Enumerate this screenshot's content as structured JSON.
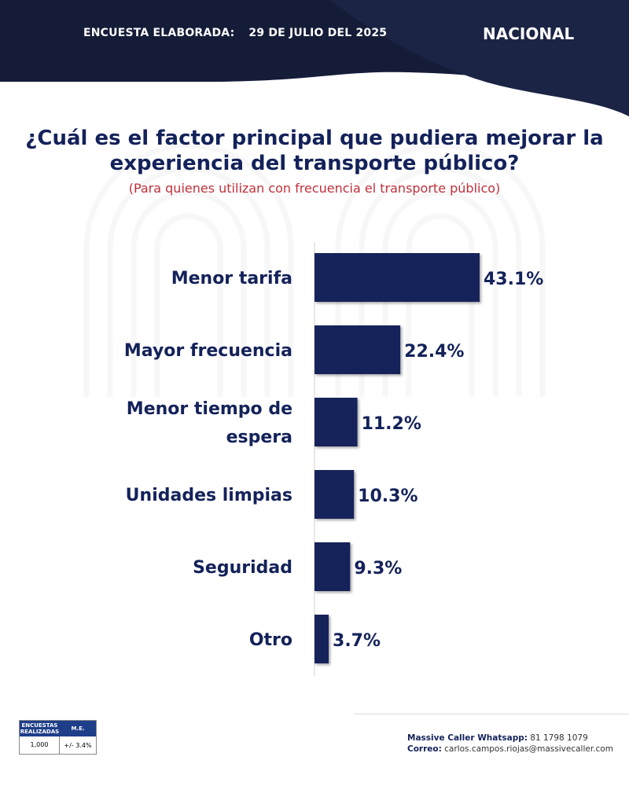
{
  "header": {
    "label": "ENCUESTA ELABORADA:",
    "date": "29 DE JULIO DEL 2025",
    "region": "NACIONAL"
  },
  "colors": {
    "navy": "#14225a",
    "subtitle": "#c0303a",
    "table_head": "#1e3e8a"
  },
  "chart_data": {
    "type": "bar",
    "orientation": "horizontal",
    "title": "¿Cuál es el factor principal que pudiera mejorar la experiencia del transporte público?",
    "subtitle": "(Para quienes utilizan con frecuencia el transporte público)",
    "categories": [
      [
        "Menor tarifa"
      ],
      [
        "Mayor frecuencia"
      ],
      [
        "Menor tiempo de",
        "espera"
      ],
      [
        "Unidades limpias"
      ],
      [
        "Seguridad"
      ],
      [
        "Otro"
      ]
    ],
    "values": [
      43.1,
      22.4,
      11.2,
      10.3,
      9.3,
      3.7
    ],
    "data_labels": [
      "43.1%",
      "22.4%",
      "11.2%",
      "10.3%",
      "9.3%",
      "3.7%"
    ],
    "grid": false
  },
  "stats": {
    "col1_head_line1": "ENCUESTAS",
    "col1_head_line2": "REALIZADAS",
    "col2_head": "M.E.",
    "col1_value": "1,000",
    "col2_value": "+/- 3.4%"
  },
  "contact": {
    "whatsapp_label": "Massive Caller Whatsapp:",
    "whatsapp_number": "81 1798 1079",
    "email_label": "Correo:",
    "email": "carlos.campos.riojas@massivecaller.com"
  }
}
